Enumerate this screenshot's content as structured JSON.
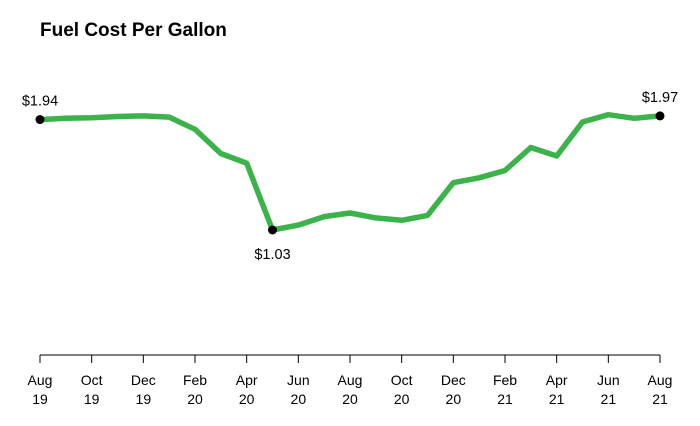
{
  "chart_data": {
    "type": "line",
    "title": "Fuel Cost Per Gallon",
    "xlabel": "",
    "ylabel": "",
    "unit": "$",
    "series_color": "#3cb34a",
    "marker_color": "#000000",
    "grid": false,
    "ylim": [
      0,
      2.2
    ],
    "x": [
      "2019-08",
      "2019-09",
      "2019-10",
      "2019-11",
      "2019-12",
      "2020-01",
      "2020-02",
      "2020-03",
      "2020-04",
      "2020-05",
      "2020-06",
      "2020-07",
      "2020-08",
      "2020-09",
      "2020-10",
      "2020-11",
      "2020-12",
      "2021-01",
      "2021-02",
      "2021-03",
      "2021-04",
      "2021-05",
      "2021-06",
      "2021-07",
      "2021-08"
    ],
    "values": [
      1.94,
      1.95,
      1.955,
      1.965,
      1.97,
      1.96,
      1.86,
      1.66,
      1.58,
      1.03,
      1.07,
      1.14,
      1.17,
      1.13,
      1.11,
      1.15,
      1.42,
      1.46,
      1.52,
      1.71,
      1.64,
      1.92,
      1.98,
      1.95,
      1.97
    ],
    "x_ticks": [
      {
        "month": "Aug",
        "year": "19"
      },
      {
        "month": "Oct",
        "year": "19"
      },
      {
        "month": "Dec",
        "year": "19"
      },
      {
        "month": "Feb",
        "year": "20"
      },
      {
        "month": "Apr",
        "year": "20"
      },
      {
        "month": "Jun",
        "year": "20"
      },
      {
        "month": "Aug",
        "year": "20"
      },
      {
        "month": "Oct",
        "year": "20"
      },
      {
        "month": "Dec",
        "year": "20"
      },
      {
        "month": "Feb",
        "year": "21"
      },
      {
        "month": "Apr",
        "year": "21"
      },
      {
        "month": "Jun",
        "year": "21"
      },
      {
        "month": "Aug",
        "year": "21"
      }
    ],
    "annotations": [
      {
        "index": 0,
        "label": "$1.94",
        "position": "above"
      },
      {
        "index": 9,
        "label": "$1.03",
        "position": "below"
      },
      {
        "index": 24,
        "label": "$1.97",
        "position": "above"
      }
    ]
  }
}
